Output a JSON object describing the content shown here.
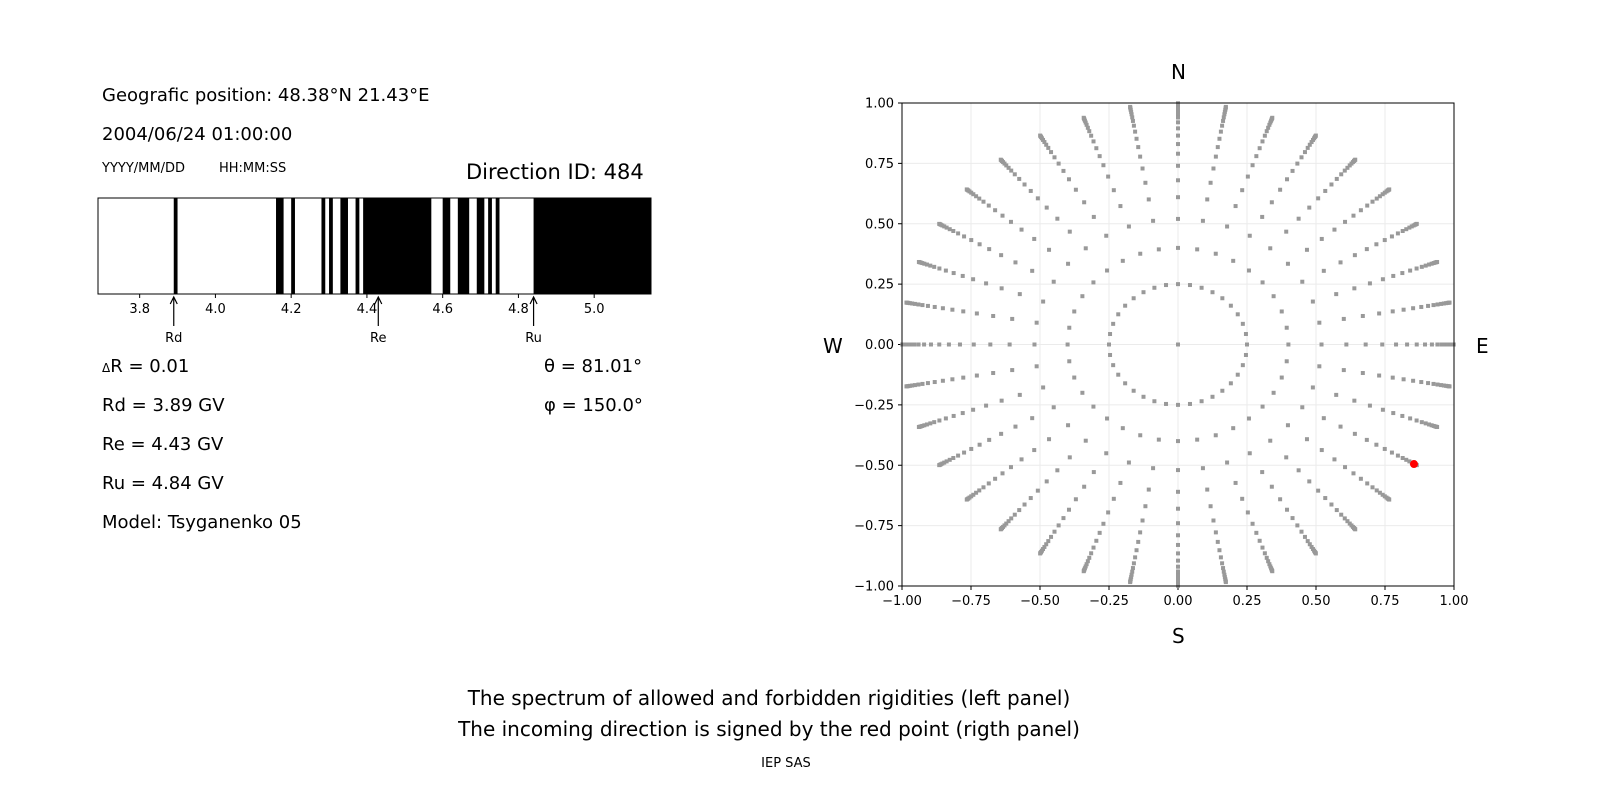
{
  "left_panel": {
    "position": "Geografic position: 48.38°N 21.43°E",
    "datetime": "2004/06/24 01:00:00",
    "date_format": "YYYY/MM/DD",
    "time_format": "HH:MM:SS",
    "direction_id": "Direction ID: 484",
    "delta_r_symbol": "Δ",
    "delta_r": "R = 0.01",
    "rd": "Rd = 3.89 GV",
    "re": "Re = 4.43 GV",
    "ru": "Ru = 4.84 GV",
    "model": "Model: Tsyganenko 05",
    "theta": "θ = 81.01°",
    "phi": "φ = 150.0°"
  },
  "footer": {
    "line1": "The spectrum of allowed and forbidden rigidities (left panel)",
    "line2": "The incoming direction is signed by the red point (rigth panel)",
    "credit": "IEP SAS"
  },
  "chart_data": [
    {
      "type": "bar",
      "description_kind": "rigidity spectrum (black = forbidden, white = allowed)",
      "xlim": [
        3.69,
        5.15
      ],
      "xticks": [
        "3.8",
        "4.0",
        "4.2",
        "4.4",
        "4.6",
        "4.8",
        "5.0"
      ],
      "forbidden_bands": [
        [
          3.89,
          3.9
        ],
        [
          4.16,
          4.18
        ],
        [
          4.2,
          4.21
        ],
        [
          4.28,
          4.29
        ],
        [
          4.3,
          4.31
        ],
        [
          4.33,
          4.35
        ],
        [
          4.37,
          4.38
        ],
        [
          4.39,
          4.57
        ],
        [
          4.6,
          4.62
        ],
        [
          4.64,
          4.67
        ],
        [
          4.69,
          4.71
        ],
        [
          4.72,
          4.73
        ],
        [
          4.74,
          4.75
        ],
        [
          4.84,
          5.15
        ]
      ],
      "markers": [
        {
          "label": "Rd",
          "value": 3.89
        },
        {
          "label": "Re",
          "value": 4.43
        },
        {
          "label": "Ru",
          "value": 4.84
        }
      ],
      "colors": {
        "forbidden": "#000000",
        "allowed": "#ffffff"
      }
    },
    {
      "type": "scatter",
      "xlim": [
        -1,
        1
      ],
      "ylim": [
        -1,
        1
      ],
      "xticks": [
        "−1.00",
        "−0.75",
        "−0.50",
        "−0.25",
        "0.00",
        "0.25",
        "0.50",
        "0.75",
        "1.00"
      ],
      "yticks": [
        "1.00",
        "0.75",
        "0.50",
        "0.25",
        "0.00",
        "−0.25",
        "−0.50",
        "−0.75",
        "−1.00"
      ],
      "grid": true,
      "compass": {
        "n": "N",
        "s": "S",
        "w": "W",
        "e": "E"
      },
      "grid_points": {
        "azimuth_step_deg": 10,
        "radii": [
          0.25,
          0.4,
          0.52,
          0.61,
          0.68,
          0.74,
          0.79,
          0.83,
          0.865,
          0.895,
          0.92,
          0.94,
          0.955,
          0.968,
          0.978,
          0.986,
          0.992,
          0.996,
          0.999
        ],
        "center_point": true,
        "color": "#999999"
      },
      "highlight": {
        "x": 0.855,
        "y": -0.495,
        "color": "#ff0000"
      }
    }
  ]
}
